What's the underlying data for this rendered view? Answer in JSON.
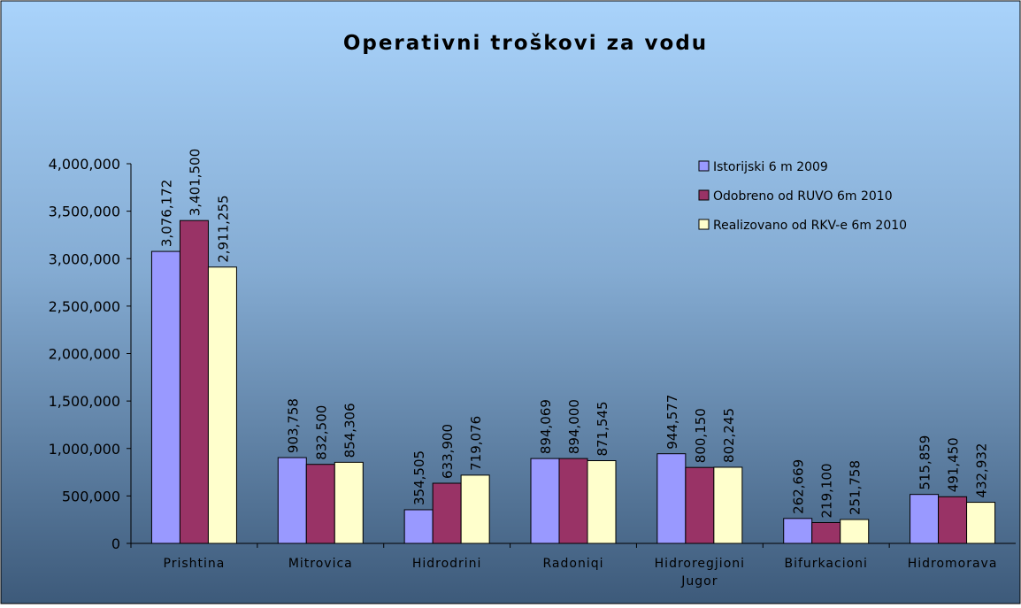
{
  "chart_data": {
    "type": "bar",
    "title": "Operativni troškovi za vodu",
    "categories": [
      "Prishtina",
      "Mitrovica",
      "Hidrodrini",
      "Radoniqi",
      "Hidroregjioni Jugor",
      "Bifurkacioni",
      "Hidromorava"
    ],
    "series": [
      {
        "name": "Istorijski 6 m 2009",
        "color": "#9999ff",
        "values": [
          3076172,
          903758,
          354505,
          894069,
          944577,
          262669,
          515859
        ],
        "value_labels": [
          "3,076,172",
          "903,758",
          "354,505",
          "894,069",
          "944,577",
          "262,669",
          "515,859"
        ]
      },
      {
        "name": "Odobreno od RUVO 6m 2010",
        "color": "#993366",
        "values": [
          3401500,
          832500,
          633900,
          894000,
          800150,
          219100,
          491450
        ],
        "value_labels": [
          "3,401,500",
          "832,500",
          "633,900",
          "894,000",
          "800,150",
          "219,100",
          "491,450"
        ]
      },
      {
        "name": "Realizovano od RKV-e 6m 2010",
        "color": "#ffffcc",
        "values": [
          2911255,
          854306,
          719076,
          871545,
          802245,
          251758,
          432932
        ],
        "value_labels": [
          "2,911,255",
          "854,306",
          "719,076",
          "871,545",
          "802,245",
          "251,758",
          "432,932"
        ]
      }
    ],
    "ylim": [
      0,
      4000000
    ],
    "yticks": [
      0,
      {
        "value": 500000,
        "label": "500,000"
      },
      {
        "value": 1000000,
        "label": "1,000,000"
      },
      {
        "value": 1500000,
        "label": "1,500,000"
      },
      {
        "value": 2000000,
        "label": "2,000,000"
      },
      {
        "value": 2500000,
        "label": "2,500,000"
      },
      {
        "value": 3000000,
        "label": "3,000,000"
      },
      {
        "value": 3500000,
        "label": "3,500,000"
      },
      {
        "value": 4000000,
        "label": "4,000,000"
      }
    ],
    "legend": "upper right"
  }
}
